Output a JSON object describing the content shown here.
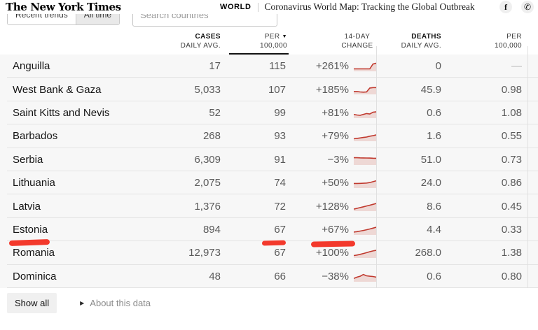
{
  "header": {
    "logo": "The New York Times",
    "section": "WORLD",
    "title": "Coronavirus World Map: Tracking the Global Outbreak",
    "facebook_glyph": "f",
    "whatsapp_glyph": "✆"
  },
  "controls": {
    "toggle_recent": "Recent trends",
    "toggle_all_time": "All time",
    "search_placeholder": "Search countries"
  },
  "table": {
    "sort_indicator": "▼",
    "columns": [
      {
        "line1": "CASES",
        "line2": "DAILY AVG."
      },
      {
        "line1": "PER",
        "line2": "100,000",
        "sorted": true
      },
      {
        "line1": "14-DAY",
        "line2": "CHANGE"
      },
      {
        "line1": "DEATHS",
        "line2": "DAILY AVG."
      },
      {
        "line1": "PER",
        "line2": "100,000"
      }
    ],
    "rows": [
      {
        "name": "Anguilla",
        "cases": "17",
        "per100k": "115",
        "change": "+261%",
        "deaths": "0",
        "deaths_per100k": "—",
        "spark": [
          2,
          2,
          2,
          2,
          2,
          2,
          7.5,
          8.5
        ]
      },
      {
        "name": "West Bank & Gaza",
        "cases": "5,033",
        "per100k": "107",
        "change": "+185%",
        "deaths": "45.9",
        "deaths_per100k": "0.98",
        "spark": [
          2.5,
          2.5,
          2,
          1.8,
          2,
          6.5,
          7,
          7
        ]
      },
      {
        "name": "Saint Kitts and Nevis",
        "cases": "52",
        "per100k": "99",
        "change": "+81%",
        "deaths": "0.6",
        "deaths_per100k": "1.08",
        "spark": [
          3.5,
          2.8,
          2.5,
          3.5,
          4.5,
          4,
          6,
          6.5
        ]
      },
      {
        "name": "Barbados",
        "cases": "268",
        "per100k": "93",
        "change": "+79%",
        "deaths": "1.6",
        "deaths_per100k": "0.55",
        "spark": [
          2,
          2.5,
          3,
          3.5,
          4,
          5,
          5.5,
          6.5
        ]
      },
      {
        "name": "Serbia",
        "cases": "6,309",
        "per100k": "91",
        "change": "−3%",
        "deaths": "51.0",
        "deaths_per100k": "0.73",
        "spark": [
          7.5,
          7.5,
          7.4,
          7.3,
          7.2,
          7.1,
          7,
          6.9
        ]
      },
      {
        "name": "Lithuania",
        "cases": "2,075",
        "per100k": "74",
        "change": "+50%",
        "deaths": "24.0",
        "deaths_per100k": "0.86",
        "spark": [
          4.5,
          4.5,
          4.6,
          4.7,
          5,
          5.5,
          6.5,
          7.5
        ]
      },
      {
        "name": "Latvia",
        "cases": "1,376",
        "per100k": "72",
        "change": "+128%",
        "deaths": "8.6",
        "deaths_per100k": "0.45",
        "spark": [
          1.5,
          2.4,
          3.3,
          4.2,
          5.1,
          6,
          7,
          8
        ]
      },
      {
        "name": "Estonia",
        "cases": "894",
        "per100k": "67",
        "change": "+67%",
        "deaths": "4.4",
        "deaths_per100k": "0.33",
        "spark": [
          2.5,
          3,
          3.6,
          4.3,
          5.1,
          6,
          7,
          8
        ],
        "annotate": [
          "name",
          "per100k",
          "change"
        ]
      },
      {
        "name": "Romania",
        "cases": "12,973",
        "per100k": "67",
        "change": "+100%",
        "deaths": "268.0",
        "deaths_per100k": "1.38",
        "spark": [
          2,
          2.6,
          3.4,
          4.3,
          5.3,
          6.4,
          7.3,
          8
        ]
      },
      {
        "name": "Dominica",
        "cases": "48",
        "per100k": "66",
        "change": "−38%",
        "deaths": "0.6",
        "deaths_per100k": "0.80",
        "spark": [
          3,
          4.5,
          5.5,
          7.5,
          6,
          5.5,
          5.2,
          4.5
        ]
      }
    ]
  },
  "footer": {
    "show_all": "Show all",
    "about_arrow": "▶",
    "about": "About this data"
  },
  "colors": {
    "spark_line": "#c0392e",
    "spark_fill": "#eed8d5",
    "annotation_red": "#f3392c"
  }
}
